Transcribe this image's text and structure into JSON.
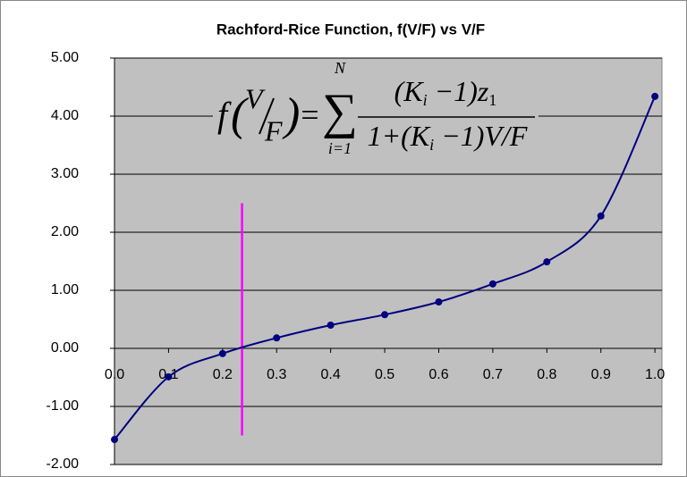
{
  "chart_data": {
    "type": "line",
    "title": "Rachford-Rice Function, f(V/F) vs V/F",
    "x": [
      0.0,
      0.1,
      0.2,
      0.3,
      0.4,
      0.5,
      0.6,
      0.7,
      0.8,
      0.9,
      1.0
    ],
    "series": [
      {
        "color": "#000080",
        "values": [
          -1.57,
          -0.49,
          -0.09,
          0.18,
          0.4,
          0.58,
          0.8,
          1.11,
          1.49,
          2.28,
          4.34
        ]
      }
    ],
    "xlim": [
      0,
      1.013
    ],
    "xticks": [
      {
        "value": 0,
        "label": "0.0"
      },
      0.1,
      0.2,
      0.3,
      0.4,
      0.5,
      0.6,
      0.7,
      0.8,
      0.9,
      {
        "value": 1,
        "label": "1.0"
      }
    ],
    "ylim": [
      -2,
      5
    ],
    "yticks": [
      {
        "value": -2,
        "label": "-2.00"
      },
      {
        "value": -1,
        "label": "-1.00"
      },
      {
        "value": 0,
        "label": "0.00"
      },
      {
        "value": 1,
        "label": "1.00"
      },
      {
        "value": 2,
        "label": "2.00"
      },
      {
        "value": 3,
        "label": "3.00"
      },
      {
        "value": 4,
        "label": "4.00"
      },
      {
        "value": 5,
        "label": "5.00"
      }
    ],
    "grid": true,
    "vline": {
      "x": 0.236,
      "y": [
        -1.5,
        2.5
      ],
      "color": "#ff00ff"
    },
    "equation": {
      "function": "f",
      "top": "V",
      "bottom": "F",
      "equals": "=",
      "sum": "∑",
      "upper": "N",
      "lower": "i=1",
      "numerator": "(K",
      "numerator_sub": "i",
      "numerator_rest": " −1)z",
      "numerator_sub2": "1",
      "denominator": "1+(K",
      "denominator_sub": "i",
      "denominator_rest": " −1)V/F"
    }
  }
}
